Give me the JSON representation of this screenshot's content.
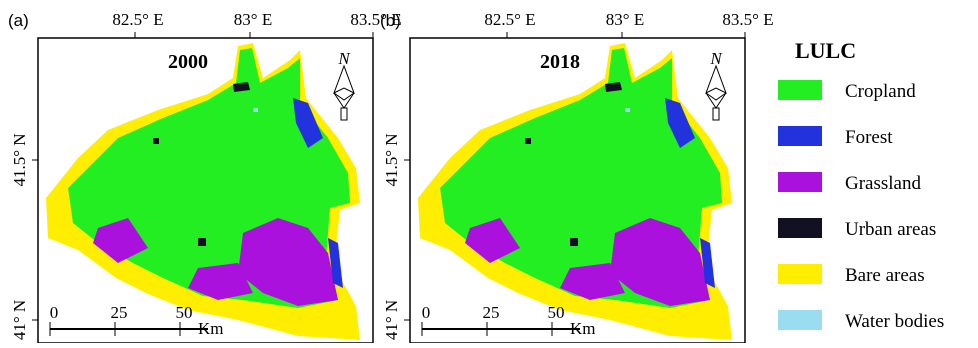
{
  "panels": [
    {
      "label": "(a)",
      "year": "2000",
      "xticks": [
        "82.5° E",
        "83° E",
        "83.5° E"
      ],
      "yticks": [
        "41.5° N",
        "41° N"
      ],
      "scale": {
        "ticks": [
          "0",
          "25",
          "50"
        ],
        "unit": "Km"
      }
    },
    {
      "label": "(b)",
      "year": "2018",
      "xticks": [
        "82.5° E",
        "83° E",
        "83.5° E"
      ],
      "yticks": [
        "41.5° N",
        "41° N"
      ],
      "scale": {
        "ticks": [
          "0",
          "25",
          "50"
        ],
        "unit": "Km"
      }
    }
  ],
  "north": "N",
  "legend": {
    "title": "LULC",
    "items": [
      {
        "name": "Cropland",
        "color": "#22ee22"
      },
      {
        "name": "Forest",
        "color": "#2233dd"
      },
      {
        "name": "Grassland",
        "color": "#aa11dd"
      },
      {
        "name": "Urban areas",
        "color": "#111122"
      },
      {
        "name": "Bare areas",
        "color": "#ffee00"
      },
      {
        "name": "Water bodies",
        "color": "#99ddee"
      }
    ]
  }
}
